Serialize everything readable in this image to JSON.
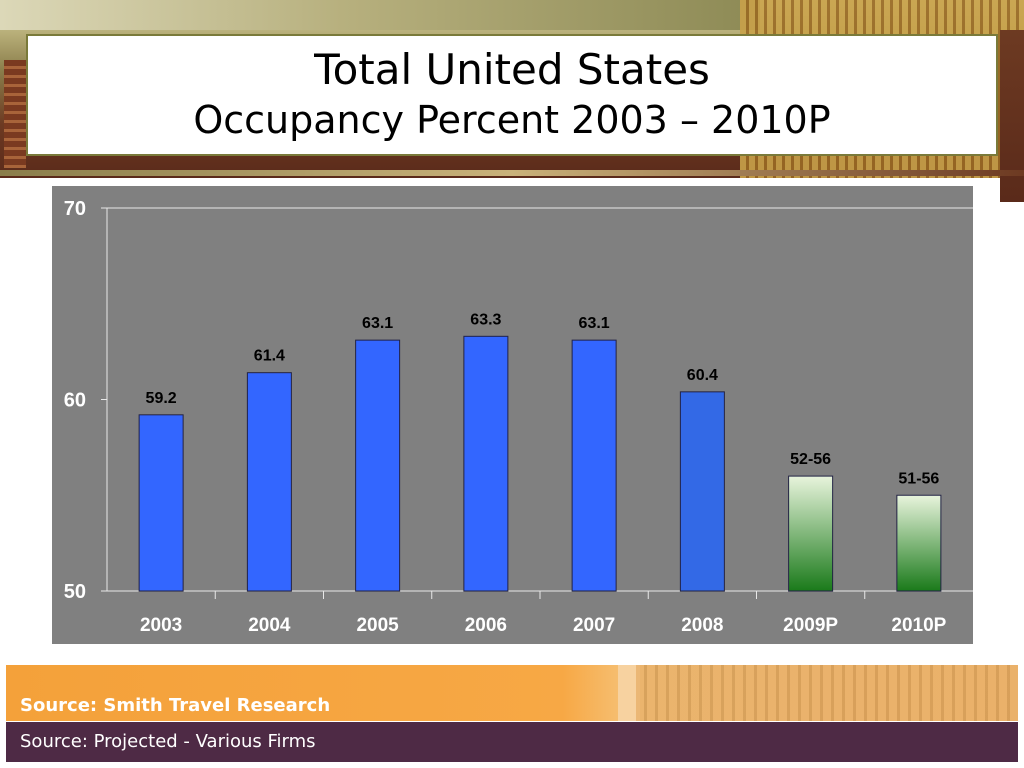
{
  "slide": {
    "title": "Total United States",
    "subtitle": "Occupancy Percent 2003 – 2010P"
  },
  "chart_data": {
    "type": "bar",
    "categories": [
      "2003",
      "2004",
      "2005",
      "2006",
      "2007",
      "2008",
      "2009P",
      "2010P"
    ],
    "values": [
      59.2,
      61.4,
      63.1,
      63.3,
      63.1,
      60.4,
      56,
      55
    ],
    "data_labels": [
      "59.2",
      "61.4",
      "63.1",
      "63.3",
      "63.1",
      "60.4",
      "52-56",
      "51-56"
    ],
    "projected": [
      false,
      false,
      false,
      false,
      false,
      false,
      true,
      true
    ],
    "ylim": [
      50,
      70
    ],
    "yticks": [
      50,
      60,
      70
    ],
    "grid": false,
    "legend": "none",
    "colors": {
      "actual": "#3366ff",
      "actual_2008": "#3369e6",
      "projected_top": "#e8f4dc",
      "projected_bottom": "#1a7a1a",
      "panel": "#808080"
    }
  },
  "footer": {
    "source_primary": "Source: Smith Travel Research",
    "source_secondary": "Source: Projected - Various Firms"
  }
}
